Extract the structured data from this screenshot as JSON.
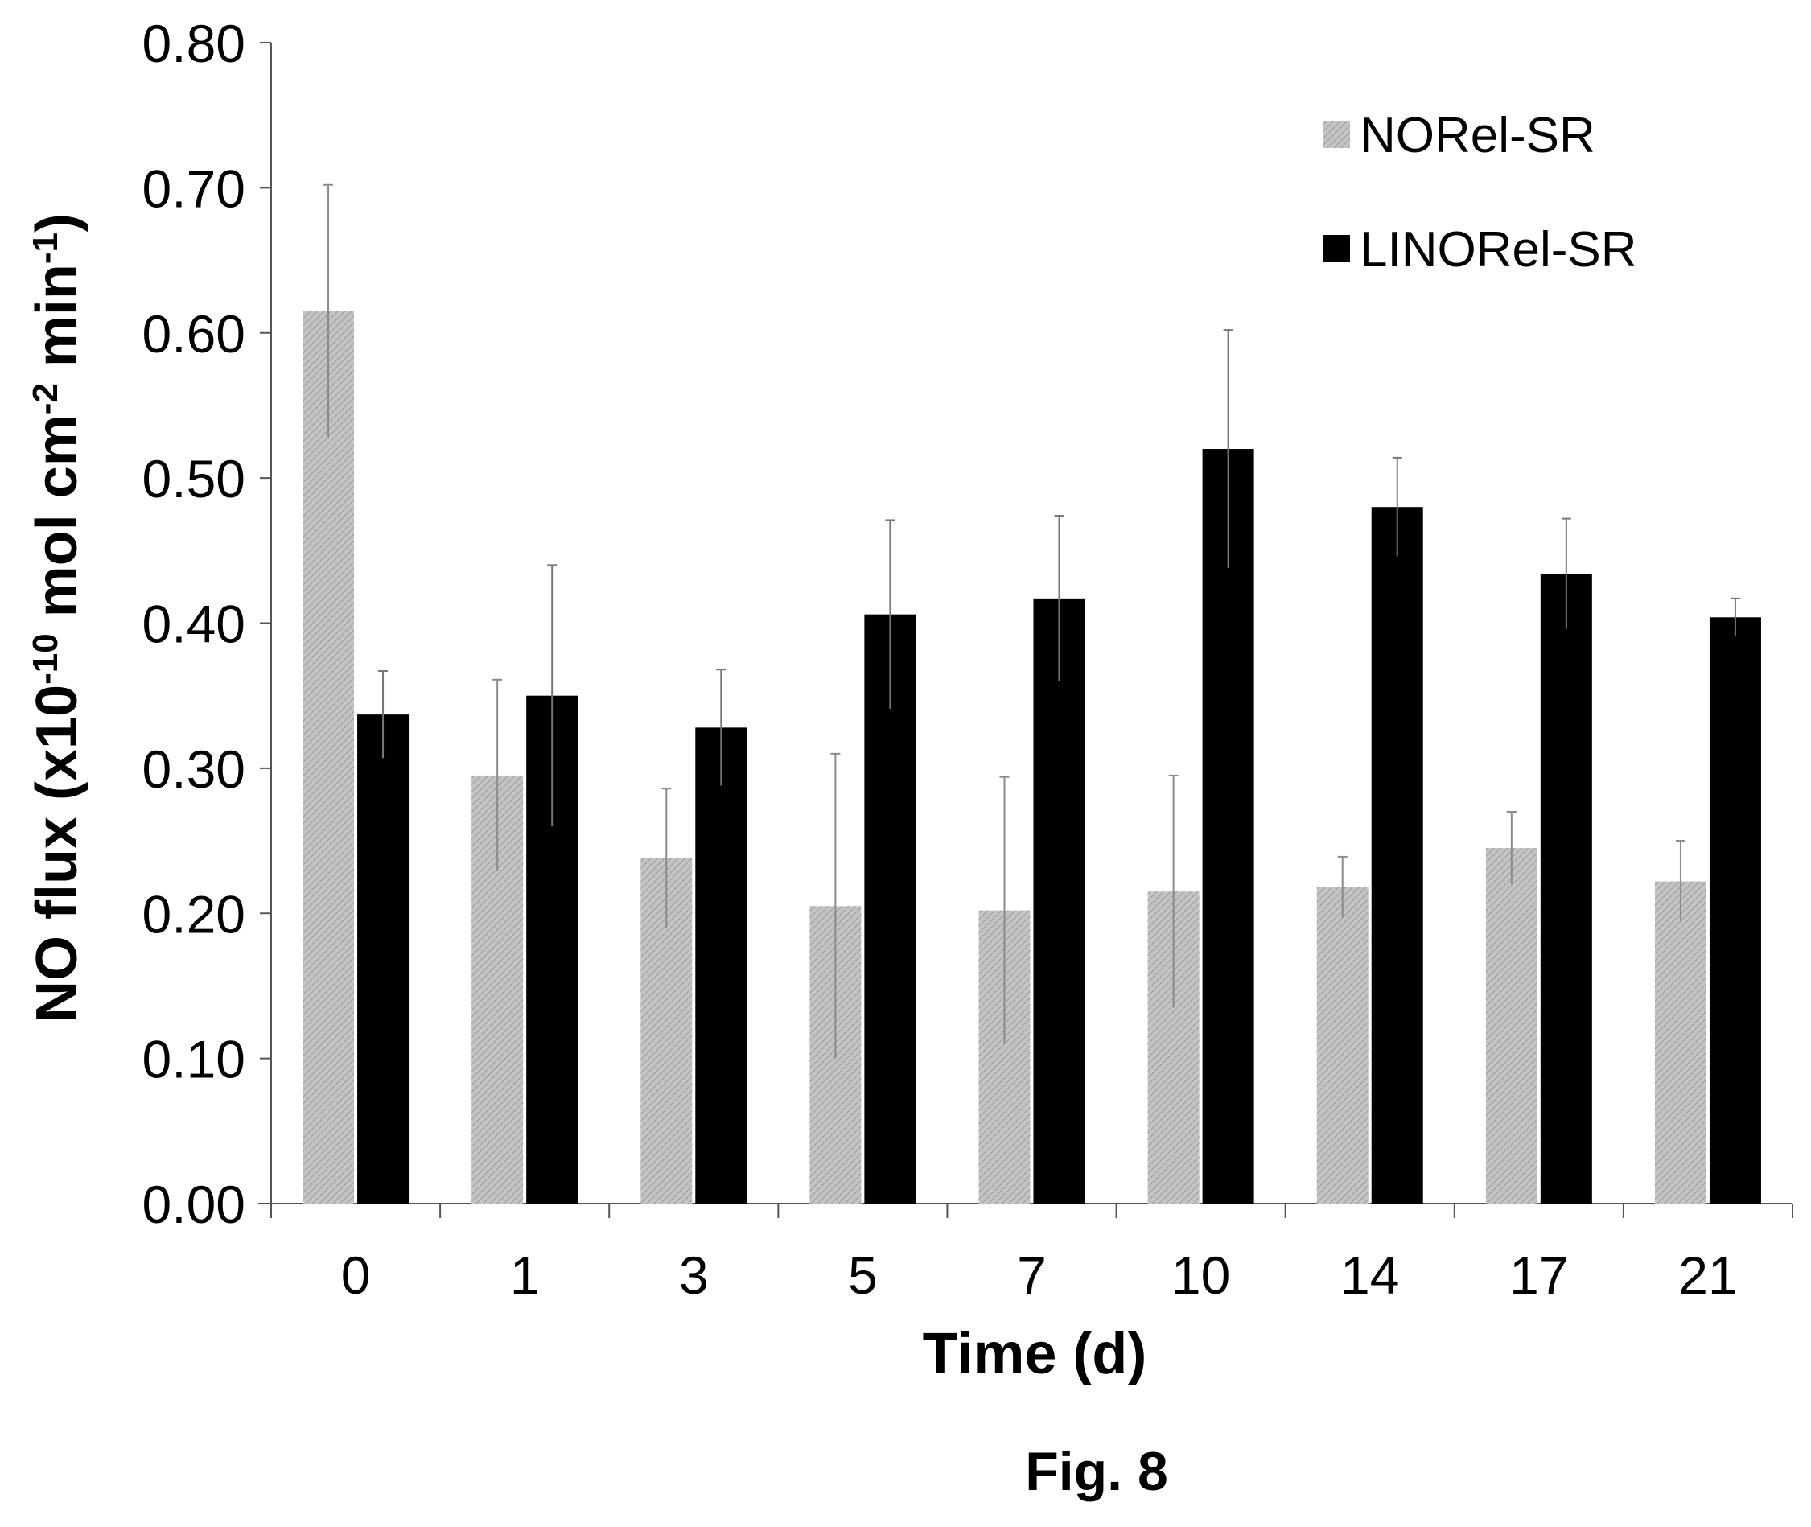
{
  "chart_data": {
    "type": "bar",
    "title": "",
    "xlabel": "Time (d)",
    "ylabel_parts": [
      "NO flux (x10",
      "-10",
      " mol cm",
      "-2",
      " min",
      "-1",
      ")"
    ],
    "ylim": [
      0,
      0.8
    ],
    "yticks": [
      "0.00",
      "0.10",
      "0.20",
      "0.30",
      "0.40",
      "0.50",
      "0.60",
      "0.70",
      "0.80"
    ],
    "categories": [
      "0",
      "1",
      "3",
      "5",
      "7",
      "10",
      "14",
      "17",
      "21"
    ],
    "grid": false,
    "legend_position": "top-right",
    "series": [
      {
        "name": "NORel-SR",
        "color": "#bdbdbd",
        "pattern": "hatched",
        "values": [
          0.615,
          0.295,
          0.238,
          0.205,
          0.202,
          0.215,
          0.218,
          0.245,
          0.222
        ],
        "errors": [
          0.087,
          0.066,
          0.048,
          0.105,
          0.092,
          0.08,
          0.021,
          0.025,
          0.028
        ]
      },
      {
        "name": "LINORel-SR",
        "color": "#000000",
        "pattern": "solid",
        "values": [
          0.337,
          0.35,
          0.328,
          0.406,
          0.417,
          0.52,
          0.48,
          0.434,
          0.404
        ],
        "errors": [
          0.03,
          0.09,
          0.04,
          0.065,
          0.057,
          0.082,
          0.034,
          0.038,
          0.013
        ]
      }
    ]
  },
  "figure": {
    "caption": "Fig. 8"
  }
}
